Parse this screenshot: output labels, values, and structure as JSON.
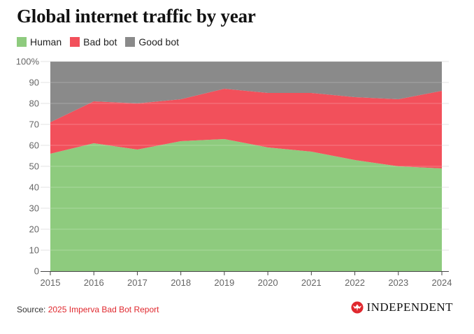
{
  "title": "Global internet traffic by year",
  "legend": [
    {
      "label": "Human",
      "color": "#8ecb7e"
    },
    {
      "label": "Bad bot",
      "color": "#f2505b"
    },
    {
      "label": "Good bot",
      "color": "#8a8a8a"
    }
  ],
  "footer": {
    "source_prefix": "Source: ",
    "source_link": "2025 Imperva Bad Bot Report",
    "brand": "INDEPENDENT",
    "brand_icon": "eagle-icon"
  },
  "chart_data": {
    "type": "area",
    "stacked": true,
    "title": "Global internet traffic by year",
    "x": [
      "2015",
      "2016",
      "2017",
      "2018",
      "2019",
      "2020",
      "2021",
      "2022",
      "2023",
      "2024"
    ],
    "series": [
      {
        "name": "Human",
        "color": "#8ecb7e",
        "values": [
          56,
          61,
          58,
          62,
          63,
          59,
          57,
          53,
          50,
          49
        ]
      },
      {
        "name": "Bad bot",
        "color": "#f2505b",
        "values": [
          15,
          20,
          22,
          20,
          24,
          26,
          28,
          30,
          32,
          37
        ]
      },
      {
        "name": "Good bot",
        "color": "#8a8a8a",
        "values": [
          29,
          19,
          20,
          18,
          13,
          15,
          15,
          17,
          18,
          14
        ]
      }
    ],
    "ylim": [
      0,
      100
    ],
    "yticks": [
      "0",
      "10",
      "20",
      "30",
      "40",
      "50",
      "60",
      "70",
      "80",
      "90",
      "100%"
    ],
    "xlabel": "",
    "ylabel": "",
    "grid": true,
    "legend_position": "top-left"
  }
}
